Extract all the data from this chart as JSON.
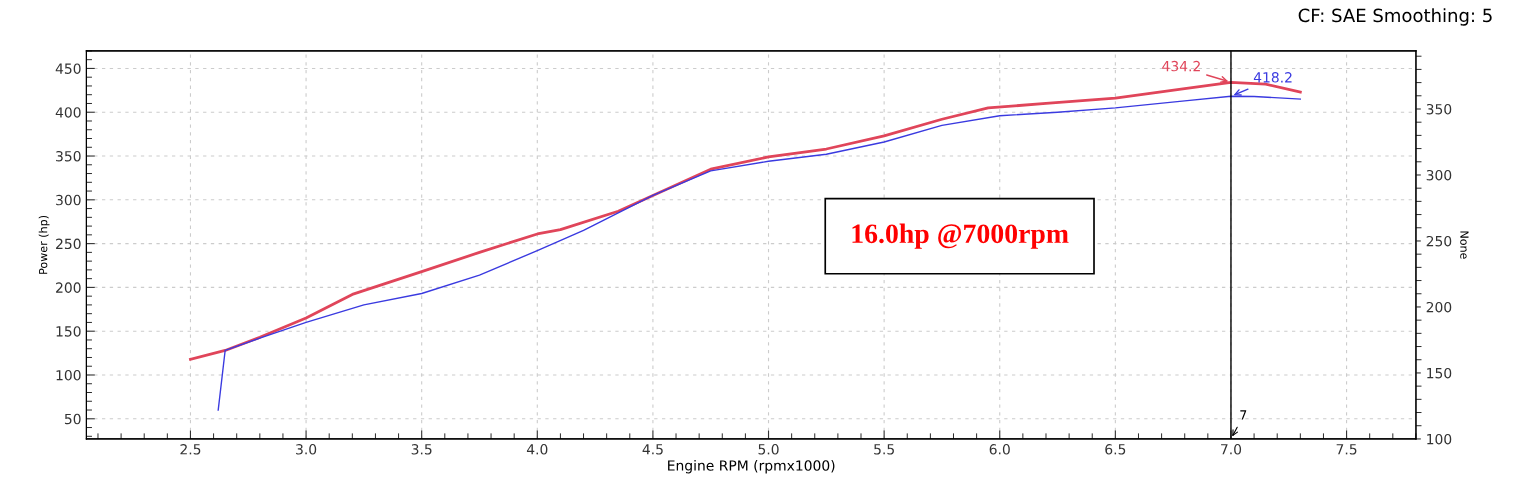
{
  "chart_data": {
    "type": "line",
    "title": "CF: SAE Smoothing: 5",
    "xlabel": "Engine RPM (rpmx1000)",
    "ylabel": "Power (hp)",
    "y2label": "None",
    "series": [
      {
        "color": "#e0455a",
        "x": [
          2.5,
          2.65,
          2.8,
          3.0,
          3.2,
          3.5,
          3.75,
          4.0,
          4.1,
          4.35,
          4.5,
          4.75,
          5.0,
          5.25,
          5.5,
          5.75,
          5.95,
          6.2,
          6.5,
          6.8,
          7.0,
          7.15,
          7.3
        ],
        "values": [
          118,
          128,
          143,
          165,
          192,
          218,
          240,
          261,
          266,
          287,
          305,
          335,
          349,
          358,
          373,
          392,
          405,
          410,
          416,
          427,
          434.2,
          432,
          423
        ]
      },
      {
        "color": "#3a3ae0",
        "x": [
          2.62,
          2.65,
          2.8,
          3.0,
          3.25,
          3.5,
          3.75,
          4.0,
          4.2,
          4.5,
          4.75,
          5.0,
          5.25,
          5.5,
          5.75,
          6.0,
          6.25,
          6.5,
          6.8,
          7.0,
          7.1,
          7.3
        ],
        "values": [
          60,
          128,
          142,
          160,
          180,
          193,
          214,
          242,
          265,
          305,
          333,
          344,
          352,
          366,
          385,
          396,
          400,
          405,
          413,
          418.2,
          418,
          415
        ]
      }
    ],
    "xlim": [
      2.05,
      7.8
    ],
    "xticks": [
      {
        "value": 2.5,
        "label": "2.5"
      },
      {
        "value": 3,
        "label": "3.0"
      },
      {
        "value": 3.5,
        "label": "3.5"
      },
      {
        "value": 4,
        "label": "4.0"
      },
      {
        "value": 4.5,
        "label": "4.5"
      },
      {
        "value": 5,
        "label": "5.0"
      },
      {
        "value": 5.5,
        "label": "5.5"
      },
      {
        "value": 6,
        "label": "6.0"
      },
      {
        "value": 6.5,
        "label": "6.5"
      },
      {
        "value": 7,
        "label": "7.0"
      },
      {
        "value": 7.5,
        "label": "7.5"
      }
    ],
    "ylim": [
      27,
      470
    ],
    "yticks": [
      50,
      100,
      150,
      200,
      250,
      300,
      350,
      400,
      450
    ],
    "y2lim": [
      100,
      394
    ],
    "y2ticks": [
      100,
      150,
      200,
      250,
      300,
      350
    ],
    "ref_lines": [
      {
        "axis": "x",
        "value": 7.0,
        "label": "7",
        "color": "#000000"
      }
    ],
    "annotations": [
      {
        "text": "434.2",
        "x": 7.0,
        "y": 434.2
      },
      {
        "text": "418.2",
        "x": 7.0,
        "y": 418.2
      },
      "16.0hp @7000rpm"
    ],
    "grid": true,
    "marker": "none",
    "line_style": "solid"
  }
}
